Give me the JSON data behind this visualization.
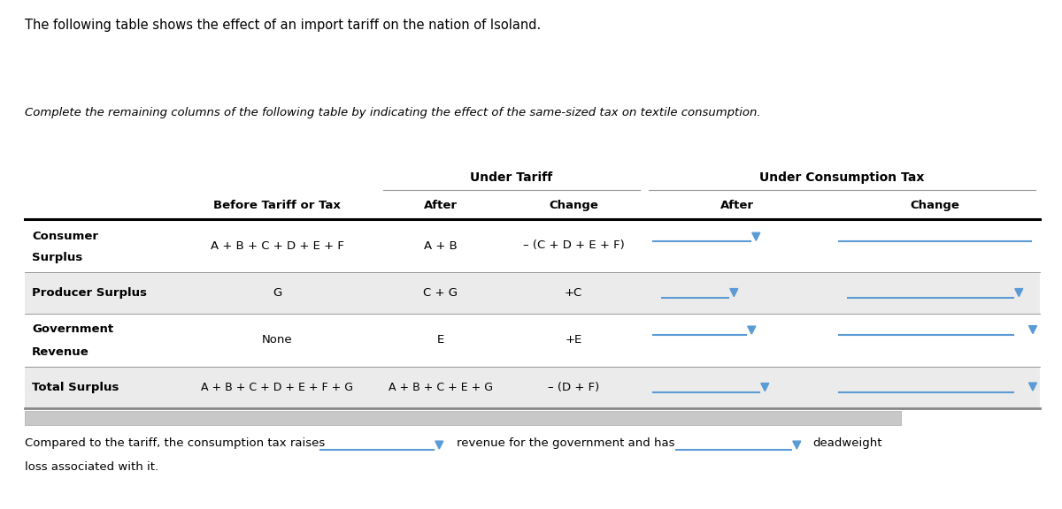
{
  "title_text": "The following table shows the effect of an import tariff on the nation of Isoland.",
  "subtitle_text": "Complete the remaining columns of the following table by indicating the effect of the same-sized tax on textile consumption.",
  "bg_color": "#ffffff",
  "header_group1": "Under Tariff",
  "header_group2": "Under Consumption Tax",
  "col_headers": [
    "Before Tariff or Tax",
    "After",
    "Change",
    "After",
    "Change"
  ],
  "arrow_color": "#5b9bd5",
  "line_color": "#5b9bd5",
  "scrollbar_color": "#c8c8c8",
  "row_shade_color": "#ebebeb",
  "footer_text1": "Compared to the tariff, the consumption tax raises",
  "footer_text2": "revenue for the government and has",
  "footer_text3": "deadweight",
  "footer_text4": "loss associated with it."
}
